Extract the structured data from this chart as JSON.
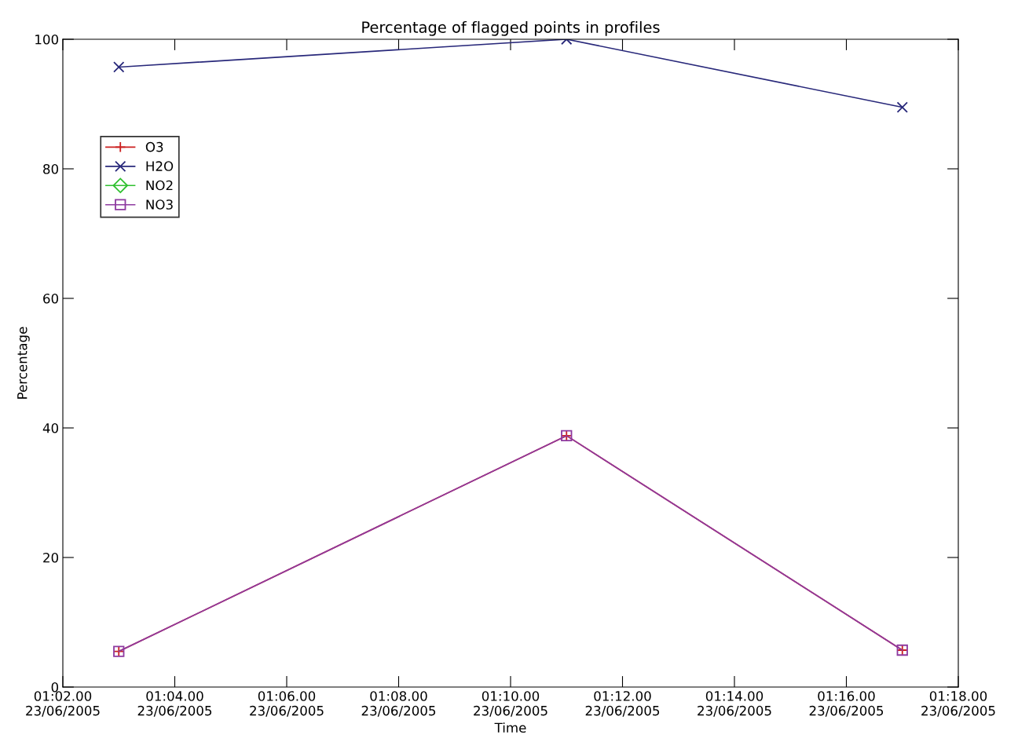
{
  "chart_data": {
    "type": "line",
    "title": "Percentage of flagged points in profiles",
    "xlabel": "Time",
    "ylabel": "Percentage",
    "x": [
      "2005-06-23T01:03",
      "2005-06-23T01:11",
      "2005-06-23T01:17"
    ],
    "series": [
      {
        "name": "O3",
        "color": "#cc2020",
        "marker": "cross",
        "values": [
          5.5,
          38.8,
          5.7
        ]
      },
      {
        "name": "H2O",
        "color": "#28287a",
        "marker": "x",
        "values": [
          95.7,
          100,
          89.5
        ]
      },
      {
        "name": "NO2",
        "color": "#30c030",
        "marker": "diamond",
        "values": [
          null,
          null,
          null
        ]
      },
      {
        "name": "NO3",
        "color": "#8e3aa0",
        "marker": "square",
        "values": [
          5.5,
          38.8,
          5.7
        ]
      }
    ],
    "xlim": [
      "2005-06-23T01:02",
      "2005-06-23T01:18"
    ],
    "xticks": [
      {
        "value": "2005-06-23T01:02",
        "label": "01:02.00\n23/06/2005"
      },
      {
        "value": "2005-06-23T01:04",
        "label": "01:04.00\n23/06/2005"
      },
      {
        "value": "2005-06-23T01:06",
        "label": "01:06.00\n23/06/2005"
      },
      {
        "value": "2005-06-23T01:08",
        "label": "01:08.00\n23/06/2005"
      },
      {
        "value": "2005-06-23T01:10",
        "label": "01:10.00\n23/06/2005"
      },
      {
        "value": "2005-06-23T01:12",
        "label": "01:12.00\n23/06/2005"
      },
      {
        "value": "2005-06-23T01:14",
        "label": "01:14.00\n23/06/2005"
      },
      {
        "value": "2005-06-23T01:16",
        "label": "01:16.00\n23/06/2005"
      },
      {
        "value": "2005-06-23T01:18",
        "label": "01:18.00\n23/06/2005"
      }
    ],
    "ylim": [
      0,
      100
    ],
    "yticks": [
      0,
      20,
      40,
      60,
      80,
      100
    ],
    "grid": false,
    "legend": "top left",
    "line_style": "solid"
  }
}
